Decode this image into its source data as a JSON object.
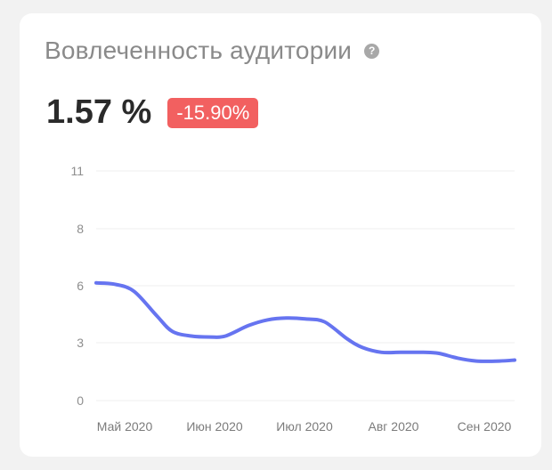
{
  "widget": {
    "title": "Вовлеченность аудитории",
    "value": "1.57 %",
    "change": "-15.90%",
    "badge_color": "#f26060",
    "help_icon": "question-circle-icon"
  },
  "chart_data": {
    "type": "line",
    "x": [
      "Май 2020",
      "Июн 2020",
      "Июл 2020",
      "Авг 2020",
      "Сен 2020"
    ],
    "y_ticks": [
      "11",
      "8",
      "6",
      "3",
      "0"
    ],
    "y_tick_values": [
      11,
      8,
      6,
      3,
      0
    ],
    "ylim": [
      0,
      11
    ],
    "series": [
      {
        "color": "#6674f0",
        "points": [
          [
            0,
            6.1
          ],
          [
            0.25,
            6.05
          ],
          [
            0.5,
            5.7
          ],
          [
            0.8,
            4.4
          ],
          [
            1.0,
            3.6
          ],
          [
            1.25,
            3.35
          ],
          [
            1.5,
            3.3
          ],
          [
            1.7,
            3.35
          ],
          [
            2.0,
            3.9
          ],
          [
            2.25,
            4.2
          ],
          [
            2.5,
            4.3
          ],
          [
            2.75,
            4.25
          ],
          [
            3.0,
            4.1
          ],
          [
            3.3,
            3.2
          ],
          [
            3.5,
            2.75
          ],
          [
            3.75,
            2.5
          ],
          [
            4.0,
            2.5
          ],
          [
            4.3,
            2.5
          ],
          [
            4.5,
            2.45
          ],
          [
            4.75,
            2.2
          ],
          [
            5.0,
            2.05
          ],
          [
            5.3,
            2.05
          ],
          [
            5.5,
            2.1
          ]
        ]
      }
    ],
    "grid": true
  }
}
